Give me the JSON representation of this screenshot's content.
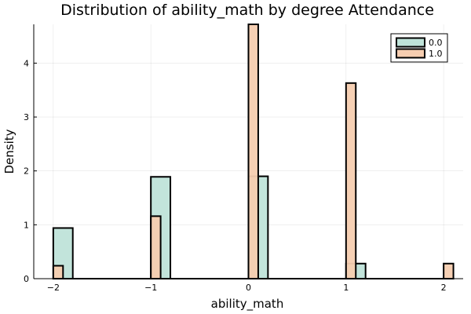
{
  "chart_data": {
    "type": "bar",
    "title": "Distribution of ability_math by degree Attendance",
    "xlabel": "ability_math",
    "ylabel": "Density",
    "xlim": [
      -2.2,
      2.2
    ],
    "ylim": [
      0,
      4.72
    ],
    "x_ticks": [
      -2,
      -1,
      0,
      1,
      2
    ],
    "x_tick_labels": [
      "−2",
      "−1",
      "0",
      "1",
      "2"
    ],
    "y_ticks": [
      0,
      1,
      2,
      3,
      4
    ],
    "y_tick_labels": [
      "0",
      "1",
      "2",
      "3",
      "4"
    ],
    "grid": true,
    "legend_position": "top-right",
    "series": [
      {
        "name": "0.0",
        "color": "#bfe3d9",
        "bins": [
          {
            "x0": -2.0,
            "x1": -1.8,
            "density": 0.94
          },
          {
            "x0": -1.0,
            "x1": -0.8,
            "density": 1.89
          },
          {
            "x0": 0.0,
            "x1": 0.2,
            "density": 1.9
          },
          {
            "x0": 1.0,
            "x1": 1.2,
            "density": 0.28
          }
        ]
      },
      {
        "name": "1.0",
        "color": "#f6cdb0",
        "bins": [
          {
            "x0": -2.0,
            "x1": -1.9,
            "density": 0.24
          },
          {
            "x0": -1.0,
            "x1": -0.9,
            "density": 1.16
          },
          {
            "x0": 0.0,
            "x1": 0.1,
            "density": 4.72
          },
          {
            "x0": 1.0,
            "x1": 1.1,
            "density": 3.63
          },
          {
            "x0": 2.0,
            "x1": 2.1,
            "density": 0.28
          }
        ]
      }
    ]
  }
}
